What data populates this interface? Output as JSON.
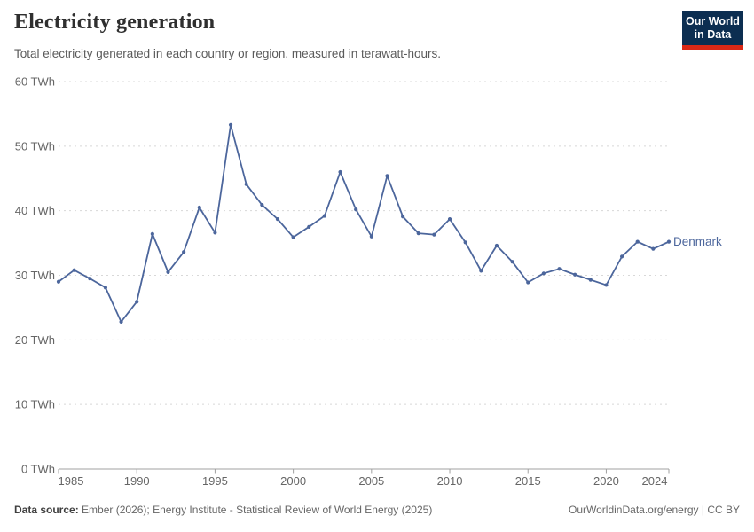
{
  "header": {
    "title": "Electricity generation",
    "subtitle": "Total electricity generated in each country or region, measured in terawatt-hours.",
    "logo": {
      "line1": "Our World",
      "line2": "in Data"
    }
  },
  "chart_data": {
    "type": "line",
    "title": "Electricity generation",
    "unit": "TWh",
    "xlim": [
      1985,
      2024
    ],
    "ylim": [
      0,
      60
    ],
    "grid": "horizontal-dashed",
    "legend_position": "end-of-line-label",
    "x_tick_values": [
      1985,
      1990,
      1995,
      2000,
      2005,
      2010,
      2015,
      2020,
      2024
    ],
    "x_tick_labels": [
      "1985",
      "1990",
      "1995",
      "2000",
      "2005",
      "2010",
      "2015",
      "2020",
      "2024"
    ],
    "y_tick_values": [
      0,
      10,
      20,
      30,
      40,
      50,
      60
    ],
    "y_tick_labels": [
      "0 TWh",
      "10 TWh",
      "20 TWh",
      "30 TWh",
      "40 TWh",
      "50 TWh",
      "60 TWh"
    ],
    "series": [
      {
        "name": "Denmark",
        "color": "#4c669c",
        "x": [
          1985,
          1986,
          1987,
          1988,
          1989,
          1990,
          1991,
          1992,
          1993,
          1994,
          1995,
          1996,
          1997,
          1998,
          1999,
          2000,
          2001,
          2002,
          2003,
          2004,
          2005,
          2006,
          2007,
          2008,
          2009,
          2010,
          2011,
          2012,
          2013,
          2014,
          2015,
          2016,
          2017,
          2018,
          2019,
          2020,
          2021,
          2022,
          2023,
          2024
        ],
        "values": [
          29.0,
          30.8,
          29.5,
          28.1,
          22.8,
          25.9,
          36.4,
          30.5,
          33.6,
          40.5,
          36.6,
          53.3,
          44.1,
          40.9,
          38.7,
          35.9,
          37.5,
          39.2,
          46.0,
          40.2,
          36.0,
          45.4,
          39.1,
          36.5,
          36.3,
          38.7,
          35.1,
          30.7,
          34.6,
          32.1,
          28.9,
          30.3,
          31.0,
          30.1,
          29.3,
          28.5,
          32.9,
          35.2,
          34.1,
          35.2
        ]
      }
    ],
    "colors": {
      "line": "#4c669c",
      "grid": "#d8d8d8",
      "axis": "#a0a0a0",
      "tick_text": "#666666"
    }
  },
  "footer": {
    "source_label": "Data source:",
    "source_text": " Ember (2026); Energy Institute - Statistical Review of World Energy (2025)",
    "right_text": "OurWorldinData.org/energy | CC BY"
  }
}
